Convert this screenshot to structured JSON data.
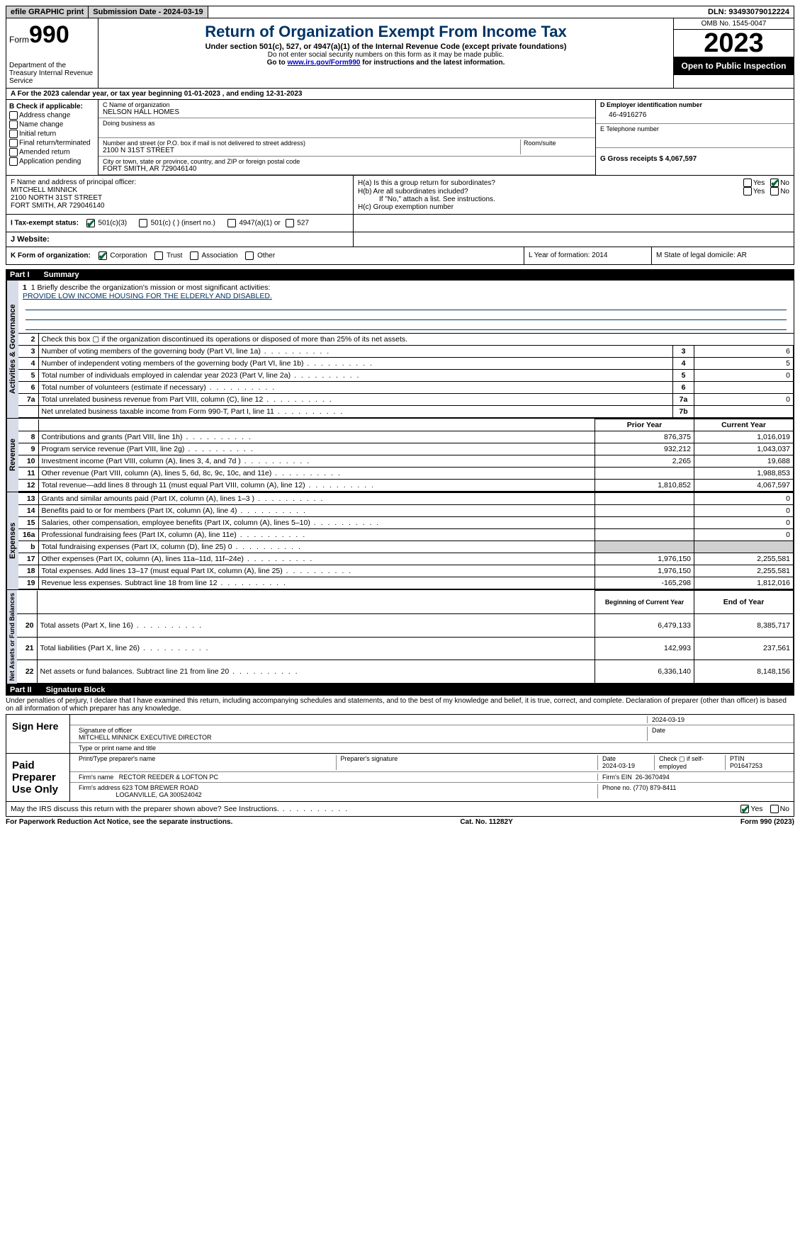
{
  "topbar": {
    "efile": "efile GRAPHIC print",
    "submission_label": "Submission Date - 2024-03-19",
    "dln": "DLN: 93493079012224"
  },
  "header": {
    "form_label": "Form",
    "form_num": "990",
    "dept": "Department of the Treasury\nInternal Revenue Service",
    "title": "Return of Organization Exempt From Income Tax",
    "sub1": "Under section 501(c), 527, or 4947(a)(1) of the Internal Revenue Code (except private foundations)",
    "sub2": "Do not enter social security numbers on this form as it may be made public.",
    "sub3_pre": "Go to ",
    "sub3_link": "www.irs.gov/Form990",
    "sub3_post": " for instructions and the latest information.",
    "omb": "OMB No. 1545-0047",
    "year": "2023",
    "inspect": "Open to Public Inspection"
  },
  "row_a": "A  For the 2023 calendar year, or tax year beginning 01-01-2023    , and ending 12-31-2023",
  "col_b": {
    "hdr": "B Check if applicable:",
    "items": [
      "Address change",
      "Name change",
      "Initial return",
      "Final return/terminated",
      "Amended return",
      "Application pending"
    ]
  },
  "col_c": {
    "name_lbl": "C Name of organization",
    "name": "NELSON HALL HOMES",
    "dba_lbl": "Doing business as",
    "addr_lbl": "Number and street (or P.O. box if mail is not delivered to street address)",
    "room_lbl": "Room/suite",
    "addr": "2100 N 31ST STREET",
    "city_lbl": "City or town, state or province, country, and ZIP or foreign postal code",
    "city": "FORT SMITH, AR  729046140"
  },
  "col_d": {
    "ein_lbl": "D Employer identification number",
    "ein": "46-4916276",
    "tel_lbl": "E Telephone number",
    "gross_lbl": "G Gross receipts $ 4,067,597"
  },
  "col_f": {
    "lbl": "F  Name and address of principal officer:",
    "name": "MITCHELL MINNICK",
    "addr1": "2100 NORTH 31ST STREET",
    "addr2": "FORT SMITH, AR  729046140"
  },
  "col_h": {
    "a": "H(a)  Is this a group return for subordinates?",
    "b": "H(b)  Are all subordinates included?",
    "b_note": "If \"No,\" attach a list. See instructions.",
    "c": "H(c)  Group exemption number",
    "yes": "Yes",
    "no": "No"
  },
  "row_i": {
    "lbl": "I    Tax-exempt status:",
    "o1": "501(c)(3)",
    "o2": "501(c) (  ) (insert no.)",
    "o3": "4947(a)(1) or",
    "o4": "527"
  },
  "row_j": "J    Website:",
  "row_k": {
    "lbl": "K Form of organization:",
    "o1": "Corporation",
    "o2": "Trust",
    "o3": "Association",
    "o4": "Other"
  },
  "row_l": "L Year of formation: 2014",
  "row_m": "M State of legal domicile: AR",
  "part1": {
    "label": "Part I",
    "title": "Summary"
  },
  "mission_lbl": "1   Briefly describe the organization's mission or most significant activities:",
  "mission": "PROVIDE LOW INCOME HOUSING FOR THE ELDERLY AND DISABLED.",
  "gov_rows": [
    {
      "n": "2",
      "t": "Check this box ▢  if the organization discontinued its operations or disposed of more than 25% of its net assets."
    },
    {
      "n": "3",
      "t": "Number of voting members of the governing body (Part VI, line 1a)",
      "box": "3",
      "v": "6"
    },
    {
      "n": "4",
      "t": "Number of independent voting members of the governing body (Part VI, line 1b)",
      "box": "4",
      "v": "5"
    },
    {
      "n": "5",
      "t": "Total number of individuals employed in calendar year 2023 (Part V, line 2a)",
      "box": "5",
      "v": "0"
    },
    {
      "n": "6",
      "t": "Total number of volunteers (estimate if necessary)",
      "box": "6",
      "v": ""
    },
    {
      "n": "7a",
      "t": "Total unrelated business revenue from Part VIII, column (C), line 12",
      "box": "7a",
      "v": "0"
    },
    {
      "n": "",
      "t": "Net unrelated business taxable income from Form 990-T, Part I, line 11",
      "box": "7b",
      "v": ""
    }
  ],
  "col_hdrs": {
    "prior": "Prior Year",
    "current": "Current Year",
    "boy": "Beginning of Current Year",
    "eoy": "End of Year"
  },
  "revenue": [
    {
      "n": "8",
      "t": "Contributions and grants (Part VIII, line 1h)",
      "p": "876,375",
      "c": "1,016,019"
    },
    {
      "n": "9",
      "t": "Program service revenue (Part VIII, line 2g)",
      "p": "932,212",
      "c": "1,043,037"
    },
    {
      "n": "10",
      "t": "Investment income (Part VIII, column (A), lines 3, 4, and 7d )",
      "p": "2,265",
      "c": "19,688"
    },
    {
      "n": "11",
      "t": "Other revenue (Part VIII, column (A), lines 5, 6d, 8c, 9c, 10c, and 11e)",
      "p": "",
      "c": "1,988,853"
    },
    {
      "n": "12",
      "t": "Total revenue—add lines 8 through 11 (must equal Part VIII, column (A), line 12)",
      "p": "1,810,852",
      "c": "4,067,597"
    }
  ],
  "expenses": [
    {
      "n": "13",
      "t": "Grants and similar amounts paid (Part IX, column (A), lines 1–3 )",
      "p": "",
      "c": "0"
    },
    {
      "n": "14",
      "t": "Benefits paid to or for members (Part IX, column (A), line 4)",
      "p": "",
      "c": "0"
    },
    {
      "n": "15",
      "t": "Salaries, other compensation, employee benefits (Part IX, column (A), lines 5–10)",
      "p": "",
      "c": "0"
    },
    {
      "n": "16a",
      "t": "Professional fundraising fees (Part IX, column (A), line 11e)",
      "p": "",
      "c": "0"
    },
    {
      "n": "b",
      "t": "Total fundraising expenses (Part IX, column (D), line 25) 0",
      "p": "shade",
      "c": "shade"
    },
    {
      "n": "17",
      "t": "Other expenses (Part IX, column (A), lines 11a–11d, 11f–24e)",
      "p": "1,976,150",
      "c": "2,255,581"
    },
    {
      "n": "18",
      "t": "Total expenses. Add lines 13–17 (must equal Part IX, column (A), line 25)",
      "p": "1,976,150",
      "c": "2,255,581"
    },
    {
      "n": "19",
      "t": "Revenue less expenses. Subtract line 18 from line 12",
      "p": "-165,298",
      "c": "1,812,016"
    }
  ],
  "netassets": [
    {
      "n": "20",
      "t": "Total assets (Part X, line 16)",
      "p": "6,479,133",
      "c": "8,385,717"
    },
    {
      "n": "21",
      "t": "Total liabilities (Part X, line 26)",
      "p": "142,993",
      "c": "237,561"
    },
    {
      "n": "22",
      "t": "Net assets or fund balances. Subtract line 21 from line 20",
      "p": "6,336,140",
      "c": "8,148,156"
    }
  ],
  "vlabels": {
    "gov": "Activities & Governance",
    "rev": "Revenue",
    "exp": "Expenses",
    "net": "Net Assets or Fund Balances"
  },
  "part2": {
    "label": "Part II",
    "title": "Signature Block"
  },
  "perjury": "Under penalties of perjury, I declare that I have examined this return, including accompanying schedules and statements, and to the best of my knowledge and belief, it is true, correct, and complete. Declaration of preparer (other than officer) is based on all information of which preparer has any knowledge.",
  "sign": {
    "here": "Sign Here",
    "date": "2024-03-19",
    "sig_lbl": "Signature of officer",
    "officer": "MITCHELL MINNICK  EXECUTIVE DIRECTOR",
    "type_lbl": "Type or print name and title",
    "date_lbl": "Date"
  },
  "preparer": {
    "lbl": "Paid Preparer Use Only",
    "name_lbl": "Print/Type preparer's name",
    "sig_lbl": "Preparer's signature",
    "date_lbl": "Date",
    "date": "2024-03-19",
    "self_lbl": "Check ▢ if self-employed",
    "ptin_lbl": "PTIN",
    "ptin": "P01647253",
    "firm_name_lbl": "Firm's name",
    "firm_name": "RECTOR REEDER & LOFTON PC",
    "firm_ein_lbl": "Firm's EIN",
    "firm_ein": "26-3670494",
    "firm_addr_lbl": "Firm's address",
    "firm_addr1": "623 TOM BREWER ROAD",
    "firm_addr2": "LOGANVILLE, GA  300524042",
    "phone_lbl": "Phone no.",
    "phone": "(770) 879-8411"
  },
  "discuss": "May the IRS discuss this return with the preparer shown above? See Instructions.",
  "footer": {
    "left": "For Paperwork Reduction Act Notice, see the separate instructions.",
    "mid": "Cat. No. 11282Y",
    "right_pre": "Form ",
    "right_form": "990",
    "right_post": " (2023)"
  }
}
